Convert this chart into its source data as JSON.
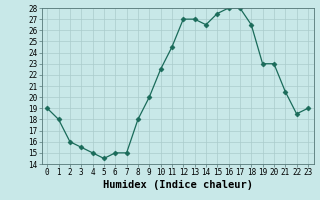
{
  "x": [
    0,
    1,
    2,
    3,
    4,
    5,
    6,
    7,
    8,
    9,
    10,
    11,
    12,
    13,
    14,
    15,
    16,
    17,
    18,
    19,
    20,
    21,
    22,
    23
  ],
  "y": [
    19,
    18,
    16,
    15.5,
    15,
    14.5,
    15,
    15,
    18,
    20,
    22.5,
    24.5,
    27,
    27,
    26.5,
    27.5,
    28,
    28,
    26.5,
    23,
    23,
    20.5,
    18.5,
    19
  ],
  "line_color": "#1a6b5a",
  "marker": "D",
  "marker_size": 2.5,
  "bg_color": "#c8e8e8",
  "grid_color": "#aacccc",
  "xlabel": "Humidex (Indice chaleur)",
  "ylim": [
    14,
    28
  ],
  "xlim": [
    -0.5,
    23.5
  ],
  "yticks": [
    14,
    15,
    16,
    17,
    18,
    19,
    20,
    21,
    22,
    23,
    24,
    25,
    26,
    27,
    28
  ],
  "xticks": [
    0,
    1,
    2,
    3,
    4,
    5,
    6,
    7,
    8,
    9,
    10,
    11,
    12,
    13,
    14,
    15,
    16,
    17,
    18,
    19,
    20,
    21,
    22,
    23
  ],
  "tick_label_fontsize": 5.5,
  "xlabel_fontsize": 7.5
}
